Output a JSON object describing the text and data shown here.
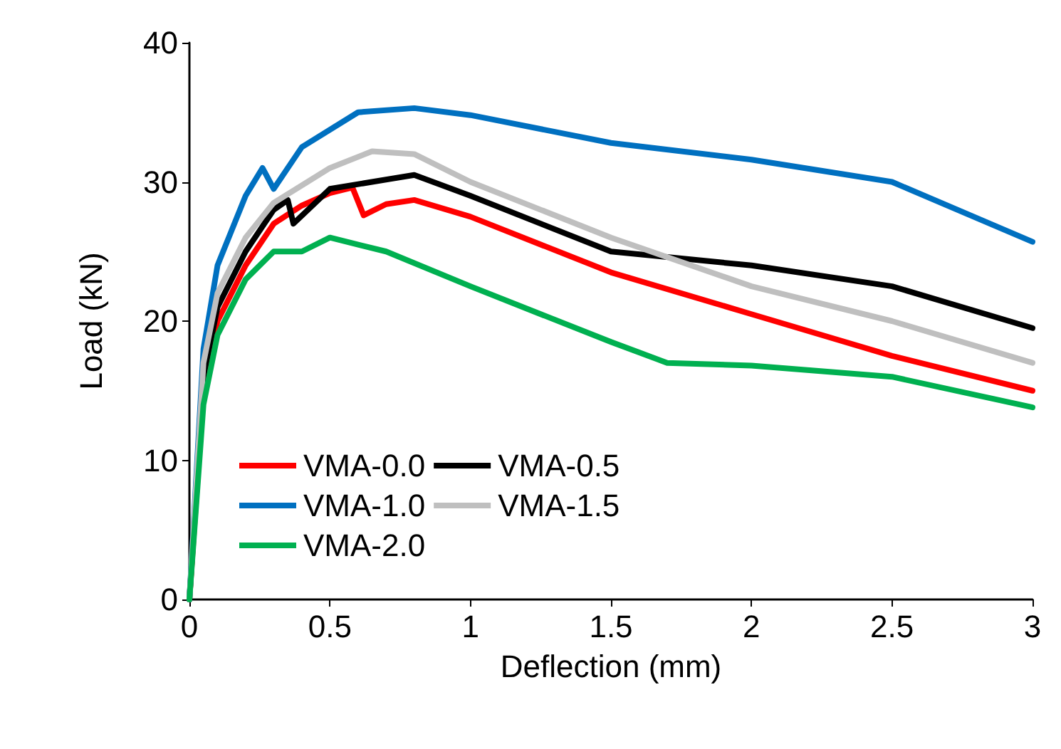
{
  "chart_data": {
    "type": "line",
    "xlabel": "Deflection (mm)",
    "ylabel": "Load (kN)",
    "xlim": [
      0,
      3
    ],
    "xticks": [
      0,
      0.5,
      1,
      1.5,
      2,
      2.5,
      3
    ],
    "ylim": [
      0,
      40
    ],
    "yticks": [
      0,
      10,
      20,
      30,
      40
    ],
    "grid": false,
    "legend": "bottom left",
    "marker": "none",
    "line_style": "solid",
    "series": [
      {
        "name": "VMA-0.0",
        "color": "#ff0000",
        "x": [
          0,
          0.05,
          0.1,
          0.2,
          0.3,
          0.4,
          0.5,
          0.58,
          0.62,
          0.7,
          0.8,
          1.0,
          1.5,
          2.0,
          2.5,
          3.0
        ],
        "values": [
          0,
          15,
          20,
          24,
          27,
          28.3,
          29.2,
          29.6,
          27.6,
          28.4,
          28.7,
          27.5,
          23.5,
          20.5,
          17.5,
          15
        ]
      },
      {
        "name": "VMA-0.5",
        "color": "#000000",
        "x": [
          0,
          0.05,
          0.1,
          0.2,
          0.3,
          0.35,
          0.37,
          0.5,
          0.8,
          1.0,
          1.5,
          2.0,
          2.5,
          3.0
        ],
        "values": [
          0,
          16,
          21,
          25,
          28,
          28.7,
          27,
          29.5,
          30.5,
          29,
          25,
          24,
          22.5,
          19.5
        ]
      },
      {
        "name": "VMA-1.0",
        "color": "#0070c0",
        "x": [
          0,
          0.05,
          0.1,
          0.2,
          0.26,
          0.3,
          0.4,
          0.6,
          0.8,
          1.0,
          1.5,
          2.0,
          2.5,
          3.0
        ],
        "values": [
          0,
          18,
          24,
          29,
          31,
          29.5,
          32.5,
          35,
          35.3,
          34.8,
          32.8,
          31.6,
          30,
          25.7
        ]
      },
      {
        "name": "VMA-1.5",
        "color": "#bfbfbf",
        "x": [
          0,
          0.05,
          0.1,
          0.2,
          0.3,
          0.5,
          0.65,
          0.8,
          1.0,
          1.5,
          2.0,
          2.5,
          3.0
        ],
        "values": [
          0,
          17,
          22,
          26,
          28.5,
          31,
          32.2,
          32,
          30,
          26,
          22.5,
          20,
          17
        ]
      },
      {
        "name": "VMA-2.0",
        "color": "#00b050",
        "x": [
          0,
          0.05,
          0.1,
          0.2,
          0.3,
          0.4,
          0.5,
          0.7,
          1.0,
          1.5,
          1.7,
          2.0,
          2.5,
          3.0
        ],
        "values": [
          0,
          14,
          19,
          23,
          25,
          25,
          26,
          25,
          22.5,
          18.5,
          17,
          16.8,
          16,
          13.8
        ]
      }
    ]
  }
}
